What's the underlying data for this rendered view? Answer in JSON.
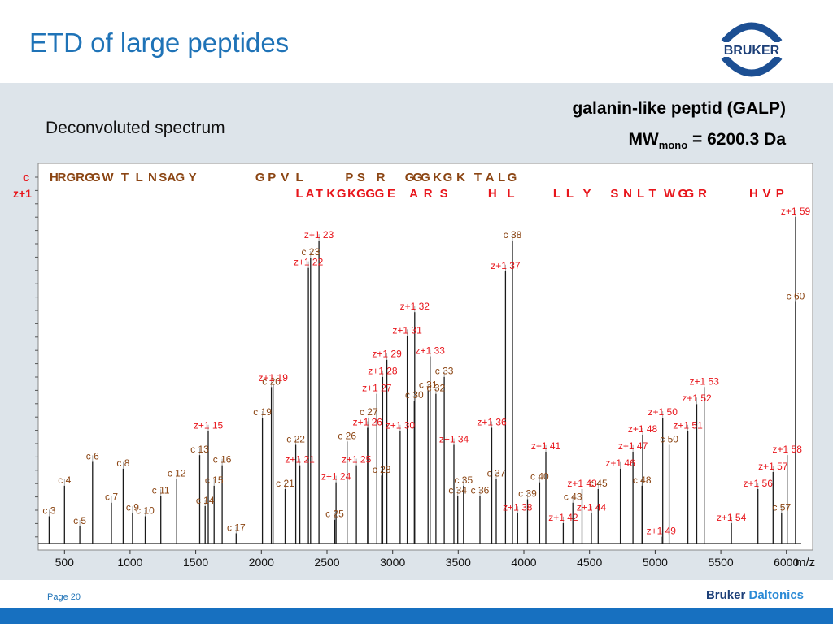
{
  "slide": {
    "title": "ETD of large peptides",
    "subtitle": "Deconvoluted spectrum",
    "peptide_name": "galanin-like peptid (GALP)",
    "mw_prefix": "MW",
    "mw_sub": "mono",
    "mw_value": " = 6200.3 Da",
    "page_label": "Page 20",
    "brand_part1": "Bruker",
    "brand_part2": "Daltonics",
    "logo_text": "BRUKER",
    "colors": {
      "title": "#1f73b7",
      "c_ion": "#8b4513",
      "z_ion": "#e8151b",
      "panel": "#dde4ea",
      "bar": "#1770c0"
    }
  },
  "chart_data": {
    "type": "bar",
    "xlabel": "m/z",
    "xlim": [
      300,
      6200
    ],
    "xticks": [
      500,
      1000,
      1500,
      2000,
      2500,
      3000,
      3500,
      4000,
      4500,
      5000,
      5500,
      6000
    ],
    "ylim": [
      0,
      100
    ],
    "series_labels": {
      "c": "c",
      "z": "z+1"
    },
    "c_sequence": [
      {
        "t": "H",
        "x": 420
      },
      {
        "t": "R",
        "x": 480
      },
      {
        "t": "G",
        "x": 550
      },
      {
        "t": "R",
        "x": 620
      },
      {
        "t": "G",
        "x": 690
      },
      {
        "t": "G",
        "x": 740
      },
      {
        "t": "W",
        "x": 830
      },
      {
        "t": "T",
        "x": 960
      },
      {
        "t": "L",
        "x": 1070
      },
      {
        "t": "N",
        "x": 1170
      },
      {
        "t": "S",
        "x": 1250
      },
      {
        "t": "A",
        "x": 1315
      },
      {
        "t": "G",
        "x": 1380
      },
      {
        "t": "Y",
        "x": 1475
      },
      {
        "t": "G",
        "x": 1990
      },
      {
        "t": "P",
        "x": 2080
      },
      {
        "t": "V",
        "x": 2180
      },
      {
        "t": "L",
        "x": 2290
      },
      {
        "t": "P",
        "x": 2670
      },
      {
        "t": "S",
        "x": 2760
      },
      {
        "t": "R",
        "x": 2910
      },
      {
        "t": "G",
        "x": 3130
      },
      {
        "t": "G",
        "x": 3190
      },
      {
        "t": "G",
        "x": 3250
      },
      {
        "t": "K",
        "x": 3340
      },
      {
        "t": "G",
        "x": 3420
      },
      {
        "t": "K",
        "x": 3520
      },
      {
        "t": "T",
        "x": 3650
      },
      {
        "t": "A",
        "x": 3740
      },
      {
        "t": "L",
        "x": 3830
      },
      {
        "t": "G",
        "x": 3910
      }
    ],
    "z_sequence": [
      {
        "t": "L",
        "x": 2290
      },
      {
        "t": "A",
        "x": 2370
      },
      {
        "t": "T",
        "x": 2440
      },
      {
        "t": "K",
        "x": 2530
      },
      {
        "t": "G",
        "x": 2610
      },
      {
        "t": "K",
        "x": 2690
      },
      {
        "t": "G",
        "x": 2760
      },
      {
        "t": "G",
        "x": 2830
      },
      {
        "t": "G",
        "x": 2900
      },
      {
        "t": "E",
        "x": 2990
      },
      {
        "t": "A",
        "x": 3160
      },
      {
        "t": "R",
        "x": 3270
      },
      {
        "t": "S",
        "x": 3390
      },
      {
        "t": "H",
        "x": 3760
      },
      {
        "t": "L",
        "x": 3900
      },
      {
        "t": "L",
        "x": 4250
      },
      {
        "t": "L",
        "x": 4350
      },
      {
        "t": "Y",
        "x": 4480
      },
      {
        "t": "S",
        "x": 4690
      },
      {
        "t": "N",
        "x": 4790
      },
      {
        "t": "L",
        "x": 4890
      },
      {
        "t": "T",
        "x": 4980
      },
      {
        "t": "W",
        "x": 5110
      },
      {
        "t": "G",
        "x": 5210
      },
      {
        "t": "G",
        "x": 5260
      },
      {
        "t": "R",
        "x": 5360
      },
      {
        "t": "H",
        "x": 5750
      },
      {
        "t": "V",
        "x": 5850
      },
      {
        "t": "P",
        "x": 5950
      }
    ],
    "peaks": [
      {
        "label": "c 3",
        "ion": "c",
        "mz": 383,
        "intensity": 8
      },
      {
        "label": "c 4",
        "ion": "c",
        "mz": 500,
        "intensity": 17
      },
      {
        "label": "c 5",
        "ion": "c",
        "mz": 617,
        "intensity": 5
      },
      {
        "label": "c 6",
        "ion": "c",
        "mz": 714,
        "intensity": 24
      },
      {
        "label": "c 7",
        "ion": "c",
        "mz": 858,
        "intensity": 12
      },
      {
        "label": "c 8",
        "ion": "c",
        "mz": 947,
        "intensity": 22
      },
      {
        "label": "c 9",
        "ion": "c",
        "mz": 1018,
        "intensity": 9
      },
      {
        "label": "c 10",
        "ion": "c",
        "mz": 1115,
        "intensity": 8
      },
      {
        "label": "c 11",
        "ion": "c",
        "mz": 1234,
        "intensity": 14
      },
      {
        "label": "c 12",
        "ion": "c",
        "mz": 1355,
        "intensity": 19
      },
      {
        "label": "c 13",
        "ion": "c",
        "mz": 1530,
        "intensity": 26
      },
      {
        "label": "c 14",
        "ion": "c",
        "mz": 1572,
        "intensity": 11
      },
      {
        "label": "c 15",
        "ion": "c",
        "mz": 1640,
        "intensity": 17
      },
      {
        "label": "c 16",
        "ion": "c",
        "mz": 1701,
        "intensity": 23
      },
      {
        "label": "c 17",
        "ion": "c",
        "mz": 1808,
        "intensity": 3
      },
      {
        "label": "c 19",
        "ion": "c",
        "mz": 2008,
        "intensity": 37
      },
      {
        "label": "c 20",
        "ion": "c",
        "mz": 2076,
        "intensity": 46
      },
      {
        "label": "c 21",
        "ion": "c",
        "mz": 2181,
        "intensity": 16
      },
      {
        "label": "c 22",
        "ion": "c",
        "mz": 2262,
        "intensity": 29
      },
      {
        "label": "c 23",
        "ion": "c",
        "mz": 2375,
        "intensity": 84
      },
      {
        "label": "c 25",
        "ion": "c",
        "mz": 2559,
        "intensity": 7
      },
      {
        "label": "c 26",
        "ion": "c",
        "mz": 2653,
        "intensity": 30
      },
      {
        "label": "c 27",
        "ion": "c",
        "mz": 2818,
        "intensity": 37
      },
      {
        "label": "c 28",
        "ion": "c",
        "mz": 2916,
        "intensity": 20
      },
      {
        "label": "c 30",
        "ion": "c",
        "mz": 3165,
        "intensity": 42
      },
      {
        "label": "c 31",
        "ion": "c",
        "mz": 3270,
        "intensity": 45
      },
      {
        "label": "c 32",
        "ion": "c",
        "mz": 3330,
        "intensity": 44
      },
      {
        "label": "c 33",
        "ion": "c",
        "mz": 3393,
        "intensity": 49
      },
      {
        "label": "c 34",
        "ion": "c",
        "mz": 3496,
        "intensity": 14
      },
      {
        "label": "c 35",
        "ion": "c",
        "mz": 3540,
        "intensity": 17
      },
      {
        "label": "c 36",
        "ion": "c",
        "mz": 3665,
        "intensity": 14
      },
      {
        "label": "c 37",
        "ion": "c",
        "mz": 3789,
        "intensity": 19
      },
      {
        "label": "c 38",
        "ion": "c",
        "mz": 3913,
        "intensity": 89
      },
      {
        "label": "c 39",
        "ion": "c",
        "mz": 4028,
        "intensity": 13
      },
      {
        "label": "c 40",
        "ion": "c",
        "mz": 4120,
        "intensity": 18
      },
      {
        "label": "c 43",
        "ion": "c",
        "mz": 4373,
        "intensity": 12
      },
      {
        "label": "c 45",
        "ion": "c",
        "mz": 4566,
        "intensity": 16
      },
      {
        "label": "c 48",
        "ion": "c",
        "mz": 4900,
        "intensity": 17
      },
      {
        "label": "c 50",
        "ion": "c",
        "mz": 5107,
        "intensity": 29
      },
      {
        "label": "c 57",
        "ion": "c",
        "mz": 5963,
        "intensity": 9
      },
      {
        "label": "c 60",
        "ion": "c",
        "mz": 6070,
        "intensity": 71
      },
      {
        "label": "z+1 15",
        "ion": "z",
        "mz": 1595,
        "intensity": 33
      },
      {
        "label": "z+1 19",
        "ion": "z",
        "mz": 2089,
        "intensity": 47
      },
      {
        "label": "z+1 21",
        "ion": "z",
        "mz": 2293,
        "intensity": 23
      },
      {
        "label": "z+1 22",
        "ion": "z",
        "mz": 2358,
        "intensity": 81
      },
      {
        "label": "z+1 23",
        "ion": "z",
        "mz": 2439,
        "intensity": 89
      },
      {
        "label": "z+1 24",
        "ion": "z",
        "mz": 2569,
        "intensity": 18
      },
      {
        "label": "z+1 25",
        "ion": "z",
        "mz": 2724,
        "intensity": 23
      },
      {
        "label": "z+1 26",
        "ion": "z",
        "mz": 2809,
        "intensity": 34
      },
      {
        "label": "z+1 27",
        "ion": "z",
        "mz": 2880,
        "intensity": 44
      },
      {
        "label": "z+1 28",
        "ion": "z",
        "mz": 2924,
        "intensity": 49
      },
      {
        "label": "z+1 29",
        "ion": "z",
        "mz": 2956,
        "intensity": 54
      },
      {
        "label": "z+1 30",
        "ion": "z",
        "mz": 3057,
        "intensity": 33
      },
      {
        "label": "z+1 31",
        "ion": "z",
        "mz": 3111,
        "intensity": 61
      },
      {
        "label": "z+1 32",
        "ion": "z",
        "mz": 3168,
        "intensity": 68
      },
      {
        "label": "z+1 33",
        "ion": "z",
        "mz": 3286,
        "intensity": 55
      },
      {
        "label": "z+1 34",
        "ion": "z",
        "mz": 3467,
        "intensity": 29
      },
      {
        "label": "z+1 36",
        "ion": "z",
        "mz": 3755,
        "intensity": 34
      },
      {
        "label": "z+1 37",
        "ion": "z",
        "mz": 3860,
        "intensity": 80
      },
      {
        "label": "z+1 38",
        "ion": "z",
        "mz": 3952,
        "intensity": 9
      },
      {
        "label": "z+1 41",
        "ion": "z",
        "mz": 4167,
        "intensity": 27
      },
      {
        "label": "z+1 42",
        "ion": "z",
        "mz": 4300,
        "intensity": 6
      },
      {
        "label": "z+1 43",
        "ion": "z",
        "mz": 4443,
        "intensity": 16
      },
      {
        "label": "z+1 44",
        "ion": "z",
        "mz": 4514,
        "intensity": 9
      },
      {
        "label": "z+1 46",
        "ion": "z",
        "mz": 4735,
        "intensity": 22
      },
      {
        "label": "z+1 47",
        "ion": "z",
        "mz": 4831,
        "intensity": 27
      },
      {
        "label": "z+1 48",
        "ion": "z",
        "mz": 4905,
        "intensity": 32
      },
      {
        "label": "z+1 49",
        "ion": "z",
        "mz": 5046,
        "intensity": 2
      },
      {
        "label": "z+1 50",
        "ion": "z",
        "mz": 5058,
        "intensity": 37
      },
      {
        "label": "z+1 51",
        "ion": "z",
        "mz": 5249,
        "intensity": 33
      },
      {
        "label": "z+1 52",
        "ion": "z",
        "mz": 5317,
        "intensity": 41
      },
      {
        "label": "z+1 53",
        "ion": "z",
        "mz": 5374,
        "intensity": 46
      },
      {
        "label": "z+1 54",
        "ion": "z",
        "mz": 5581,
        "intensity": 6
      },
      {
        "label": "z+1 56",
        "ion": "z",
        "mz": 5783,
        "intensity": 16
      },
      {
        "label": "z+1 57",
        "ion": "z",
        "mz": 5898,
        "intensity": 21
      },
      {
        "label": "z+1 58",
        "ion": "z",
        "mz": 6006,
        "intensity": 26
      },
      {
        "label": "z+1 59",
        "ion": "z",
        "mz": 6070,
        "intensity": 96
      }
    ]
  }
}
